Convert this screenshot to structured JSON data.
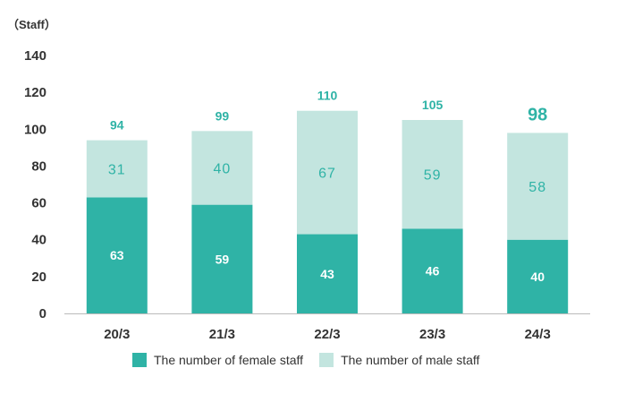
{
  "colors": {
    "female": "#2fb3a6",
    "male": "#c3e5df",
    "axis": "#bbbbbb",
    "text": "#333333",
    "accent": "#2fb3a6"
  },
  "legend": {
    "female": "The number of female staff",
    "male": "The number of male staff"
  },
  "chart_data": {
    "type": "bar",
    "stacked": true,
    "unit_label": "（Staff）",
    "categories": [
      "20/3",
      "21/3",
      "22/3",
      "23/3",
      "24/3"
    ],
    "series": [
      {
        "name": "The number of female staff",
        "values": [
          63,
          59,
          43,
          46,
          40
        ]
      },
      {
        "name": "The number of male staff",
        "values": [
          31,
          40,
          67,
          59,
          58
        ]
      }
    ],
    "totals": [
      94,
      99,
      110,
      105,
      98
    ],
    "highlight_total_index": 4,
    "ylim": [
      0,
      140
    ],
    "yticks": [
      0,
      20,
      40,
      60,
      80,
      100,
      120,
      140
    ],
    "grid": false,
    "legend_position": "bottom"
  }
}
